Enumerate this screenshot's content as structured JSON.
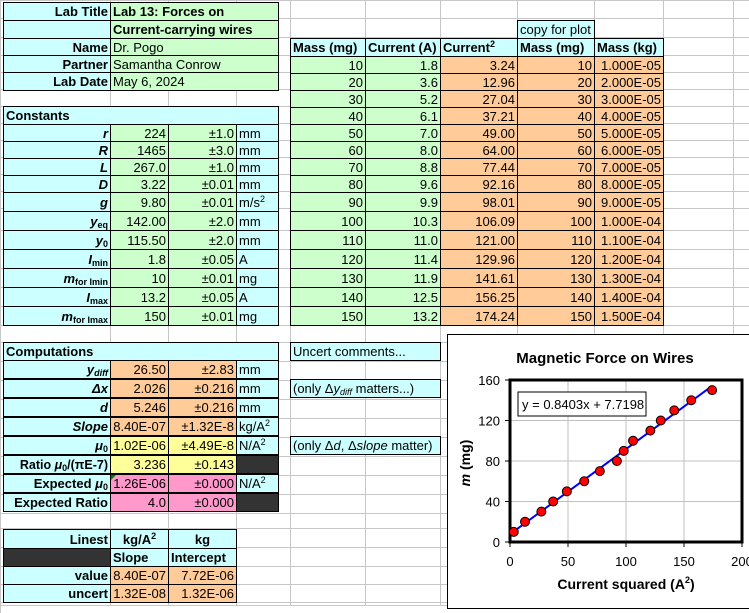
{
  "info": {
    "lab_title_label": "Lab Title",
    "lab_title_1": "Lab 13: Forces on",
    "lab_title_2": "Current-carrying wires",
    "name_label": "Name",
    "name_value": "Dr. Pogo",
    "partner_label": "Partner",
    "partner_value": "Samantha Conrow",
    "date_label": "Lab Date",
    "date_value": "May 6, 2024"
  },
  "constants": {
    "header": "Constants",
    "rows": [
      {
        "sym": "r",
        "value": "224",
        "unc": "±1.0",
        "unit": "mm"
      },
      {
        "sym": "R",
        "value": "1465",
        "unc": "±3.0",
        "unit": "mm"
      },
      {
        "sym": "L",
        "value": "267.0",
        "unc": "±1.0",
        "unit": "mm"
      },
      {
        "sym": "D",
        "value": "3.22",
        "unc": "±0.01",
        "unit": "mm"
      },
      {
        "sym": "g",
        "value": "9.80",
        "unc": "±0.01",
        "unit": "m/s",
        "unit_sup": "2"
      },
      {
        "sym": "y",
        "sub": "eq",
        "value": "142.00",
        "unc": "±2.0",
        "unit": "mm"
      },
      {
        "sym": "y",
        "sub": "0",
        "value": "115.50",
        "unc": "±2.0",
        "unit": "mm"
      },
      {
        "sym": "I",
        "sub": "min",
        "value": "1.8",
        "unc": "±0.05",
        "unit": "A"
      },
      {
        "sym": "m",
        "sub": "for Imin",
        "value": "10",
        "unc": "±0.01",
        "unit": "mg"
      },
      {
        "sym": "I",
        "sub": "max",
        "value": "13.2",
        "unc": "±0.05",
        "unit": "A"
      },
      {
        "sym": "m",
        "sub": "for Imax",
        "value": "150",
        "unc": "±0.01",
        "unit": "mg"
      }
    ]
  },
  "computations": {
    "header": "Computations",
    "rows": [
      {
        "sym": "y",
        "sub": "diff",
        "value": "26.50",
        "unc": "±2.83",
        "unit": "mm"
      },
      {
        "sym": "Δx",
        "value": "2.026",
        "unc": "±0.216",
        "unit": "mm"
      },
      {
        "sym": "d",
        "value": "5.246",
        "unc": "±0.216",
        "unit": "mm"
      },
      {
        "sym": "Slope",
        "value": "8.40E-07",
        "unc": "±1.32E-8",
        "unit": "kg/A",
        "unit_sup": "2"
      },
      {
        "sym": "μ",
        "sub": "0",
        "value": "1.02E-06",
        "unc": "±4.49E-8",
        "unit": "N/A",
        "unit_sup": "2"
      },
      {
        "label": "Ratio ",
        "sym": "μ",
        "sub": "0",
        "tail": "/(πE-7)",
        "value": "3.236",
        "unc": "±0.143"
      },
      {
        "label": "Expected ",
        "sym": "μ",
        "sub": "0",
        "value": "1.26E-06",
        "unc": "±0.000",
        "unit": "N/A",
        "unit_sup": "2"
      },
      {
        "label": "Expected Ratio",
        "value": "4.0",
        "unc": "±0.000"
      }
    ]
  },
  "comments": {
    "header": "Uncert comments...",
    "ydiff_prefix": "(only Δ",
    "ydiff_sym": "y",
    "ydiff_sub": "diff",
    "ydiff_suffix": " matters...)",
    "mu_prefix": "(only Δ",
    "mu_d": "d",
    "mu_mid": ", Δ",
    "mu_slope": "slope",
    "mu_suffix": " matter)"
  },
  "linest": {
    "label": "Linest",
    "unit_slope": "kg/A",
    "unit_slope_sup": "2",
    "unit_intercept": "kg",
    "col_slope": "Slope",
    "col_intercept": "Intercept",
    "value_label": "value",
    "value_slope": "8.40E-07",
    "value_intercept": "7.72E-06",
    "uncert_label": "uncert",
    "uncert_slope": "1.32E-08",
    "uncert_intercept": "1.32E-06"
  },
  "data_table": {
    "copy_label": "copy for plot",
    "headers": [
      "Mass (mg)",
      "Current (A)",
      "Current",
      "Mass (mg)",
      "Mass (kg)"
    ],
    "header_sup": "2",
    "rows": [
      [
        "10",
        "1.8",
        "3.24",
        "10",
        "1.000E-05"
      ],
      [
        "20",
        "3.6",
        "12.96",
        "20",
        "2.000E-05"
      ],
      [
        "30",
        "5.2",
        "27.04",
        "30",
        "3.000E-05"
      ],
      [
        "40",
        "6.1",
        "37.21",
        "40",
        "4.000E-05"
      ],
      [
        "50",
        "7.0",
        "49.00",
        "50",
        "5.000E-05"
      ],
      [
        "60",
        "8.0",
        "64.00",
        "60",
        "6.000E-05"
      ],
      [
        "70",
        "8.8",
        "77.44",
        "70",
        "7.000E-05"
      ],
      [
        "80",
        "9.6",
        "92.16",
        "80",
        "8.000E-05"
      ],
      [
        "90",
        "9.9",
        "98.01",
        "90",
        "9.000E-05"
      ],
      [
        "100",
        "10.3",
        "106.09",
        "100",
        "1.000E-04"
      ],
      [
        "110",
        "11.0",
        "121.00",
        "110",
        "1.100E-04"
      ],
      [
        "120",
        "11.4",
        "129.96",
        "120",
        "1.200E-04"
      ],
      [
        "130",
        "11.9",
        "141.61",
        "130",
        "1.300E-04"
      ],
      [
        "140",
        "12.5",
        "156.25",
        "140",
        "1.400E-04"
      ],
      [
        "150",
        "13.2",
        "174.24",
        "150",
        "1.500E-04"
      ]
    ]
  },
  "chart": {
    "title": "Magnetic Force on Wires",
    "xlabel": "Current squared (A",
    "xlabel_sup": "2",
    "xlabel_end": ")",
    "ylabel_italic": "m",
    "ylabel_rest": " (mg)",
    "equation": "y = 0.8403x + 7.7198",
    "xticks": [
      "0",
      "50",
      "100",
      "150",
      "200"
    ],
    "yticks": [
      "0",
      "40",
      "80",
      "120",
      "160"
    ],
    "marker_color": "#ff0000",
    "line_color": "#0000ff"
  },
  "chart_data": {
    "type": "scatter",
    "title": "Magnetic Force on Wires",
    "xlabel": "Current squared (A^2)",
    "ylabel": "m (mg)",
    "x": [
      3.24,
      12.96,
      27.04,
      37.21,
      49.0,
      64.0,
      77.44,
      92.16,
      98.01,
      106.09,
      121.0,
      129.96,
      141.61,
      156.25,
      174.24
    ],
    "y": [
      10,
      20,
      30,
      40,
      50,
      60,
      70,
      80,
      90,
      100,
      110,
      120,
      130,
      140,
      150
    ],
    "trendline": {
      "type": "linear",
      "slope": 0.8403,
      "intercept": 7.7198,
      "label": "y = 0.8403x + 7.7198"
    },
    "xlim": [
      0,
      200
    ],
    "ylim": [
      0,
      160
    ],
    "xticks": [
      0,
      50,
      100,
      150,
      200
    ],
    "yticks": [
      0,
      40,
      80,
      120,
      160
    ],
    "grid": true,
    "legend": false
  }
}
